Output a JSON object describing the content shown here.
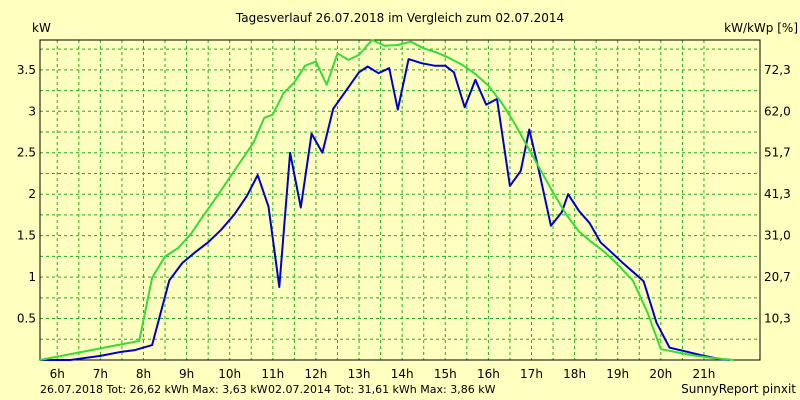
{
  "chart_data": {
    "type": "line",
    "title": "Tagesverlauf 26.07.2018 im Vergleich zum 02.07.2014",
    "ylabel_left": "kW",
    "ylabel_right": "kW/kWp [%]",
    "xlim": [
      5.6,
      22.3
    ],
    "ylim": [
      0,
      3.86
    ],
    "x_ticks": [
      6,
      7,
      8,
      9,
      10,
      11,
      12,
      13,
      14,
      15,
      16,
      17,
      18,
      19,
      20,
      21
    ],
    "x_tick_labels": [
      "6h",
      "7h",
      "8h",
      "9h",
      "10h",
      "11h",
      "12h",
      "13h",
      "14h",
      "15h",
      "16h",
      "17h",
      "18h",
      "19h",
      "20h",
      "21h"
    ],
    "y_ticks_left": [
      0.5,
      1,
      1.5,
      2,
      2.5,
      3,
      3.5
    ],
    "y_tick_labels_left": [
      "0.5",
      "1",
      "1.5",
      "2",
      "2.5",
      "3",
      "3.5"
    ],
    "y_ticks_right": [
      0.5,
      1,
      1.5,
      2,
      2.5,
      3,
      3.5
    ],
    "y_tick_labels_right": [
      "10,3",
      "20,7",
      "31,0",
      "41,3",
      "51,7",
      "62,0",
      "72,3"
    ],
    "grid": true,
    "series": [
      {
        "color": "#0000cc",
        "x": [
          5.6,
          6.3,
          7.0,
          7.5,
          7.8,
          8.2,
          8.6,
          8.9,
          9.2,
          9.5,
          9.8,
          10.1,
          10.4,
          10.65,
          10.9,
          11.15,
          11.4,
          11.65,
          11.9,
          12.15,
          12.4,
          12.7,
          13.0,
          13.2,
          13.45,
          13.7,
          13.9,
          14.15,
          14.45,
          14.75,
          15.0,
          15.2,
          15.45,
          15.7,
          15.95,
          16.2,
          16.5,
          16.75,
          16.95,
          17.2,
          17.45,
          17.7,
          17.85,
          18.1,
          18.35,
          18.6,
          18.85,
          19.1,
          19.6,
          19.9,
          20.2,
          20.6,
          21.0,
          21.4,
          21.6
        ],
        "values": [
          0,
          0,
          0.05,
          0.1,
          0.12,
          0.18,
          0.96,
          1.17,
          1.3,
          1.42,
          1.57,
          1.75,
          1.98,
          2.23,
          1.85,
          0.88,
          2.5,
          1.84,
          2.73,
          2.5,
          3.03,
          3.25,
          3.47,
          3.54,
          3.46,
          3.52,
          3.02,
          3.63,
          3.58,
          3.55,
          3.55,
          3.47,
          3.05,
          3.38,
          3.08,
          3.15,
          2.1,
          2.28,
          2.78,
          2.22,
          1.62,
          1.78,
          2.0,
          1.8,
          1.65,
          1.42,
          1.3,
          1.18,
          0.95,
          0.45,
          0.15,
          0.1,
          0.05,
          0.01,
          0.0
        ]
      },
      {
        "color": "#33dd33",
        "x": [
          5.6,
          7.9,
          8.2,
          8.5,
          8.8,
          9.1,
          9.4,
          9.7,
          10.0,
          10.3,
          10.55,
          10.8,
          11.0,
          11.25,
          11.5,
          11.75,
          12.0,
          12.25,
          12.5,
          12.75,
          13.0,
          13.3,
          13.6,
          13.9,
          14.2,
          14.5,
          14.8,
          15.1,
          15.4,
          15.7,
          16.0,
          16.3,
          16.6,
          16.9,
          17.2,
          17.5,
          17.8,
          18.1,
          18.4,
          18.7,
          19.0,
          19.35,
          19.7,
          20.0,
          20.3,
          20.7,
          21.1,
          21.5,
          21.7
        ],
        "values": [
          0,
          0.23,
          0.99,
          1.25,
          1.35,
          1.52,
          1.75,
          1.97,
          2.2,
          2.43,
          2.62,
          2.92,
          2.96,
          3.22,
          3.35,
          3.55,
          3.6,
          3.32,
          3.7,
          3.62,
          3.68,
          3.86,
          3.79,
          3.8,
          3.84,
          3.76,
          3.71,
          3.64,
          3.56,
          3.45,
          3.31,
          3.11,
          2.86,
          2.58,
          2.3,
          2.02,
          1.76,
          1.55,
          1.42,
          1.3,
          1.15,
          0.96,
          0.56,
          0.13,
          0.1,
          0.06,
          0.03,
          0.01,
          0.0
        ]
      }
    ],
    "legend": {
      "series1": "26.07.2018 Tot: 26,62 kWh Max: 3,63 kW",
      "series2": "02.07.2014 Tot: 31,61 kWh Max: 3,86 kW"
    },
    "credit": "SunnyReport pinxit"
  },
  "colors": {
    "background": "#ffffc0",
    "grid": "#22aa22",
    "series1_legend": "#0000cc",
    "series2_legend": "#00aa00"
  }
}
